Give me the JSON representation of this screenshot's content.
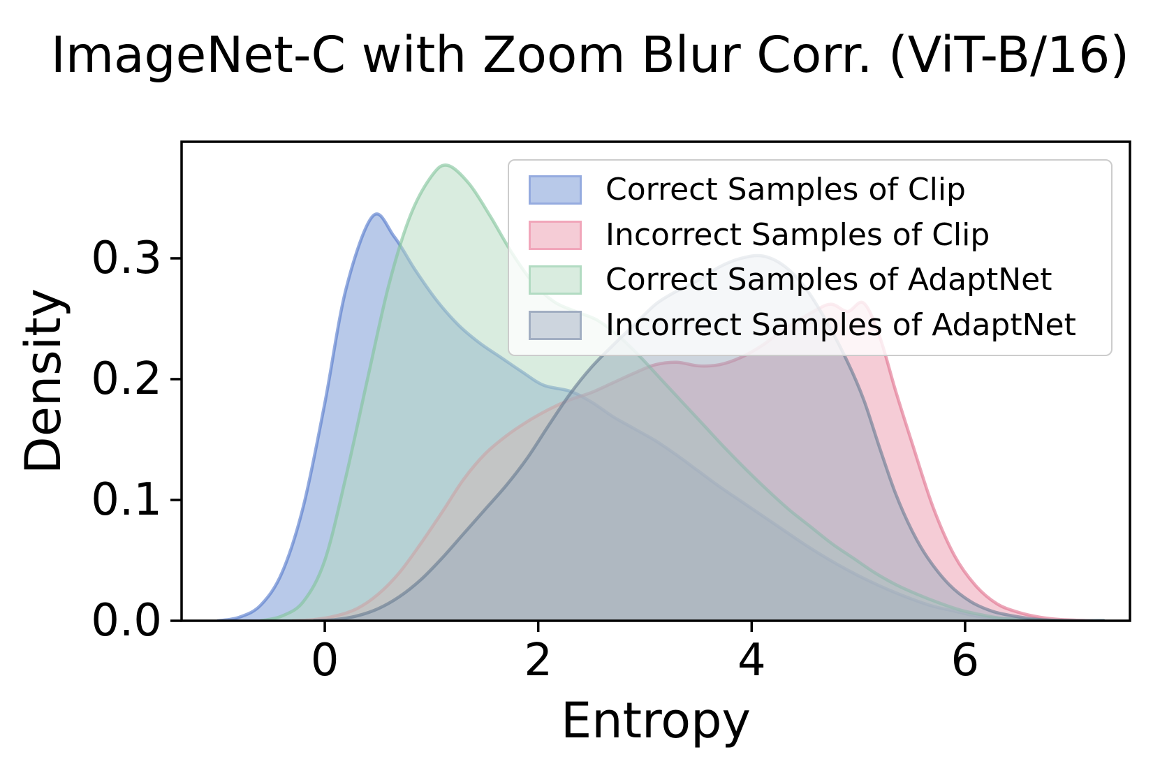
{
  "title": "ImageNet-C with Zoom Blur Corr. (ViT-B/16)",
  "axes": {
    "x": {
      "label": "Entropy",
      "tick_labels": [
        "0",
        "2",
        "4",
        "6"
      ],
      "tick_values": [
        0,
        2,
        4,
        6
      ],
      "range": [
        -1.342,
        7.545
      ]
    },
    "y": {
      "label": "Density",
      "tick_labels": [
        "0.0",
        "0.1",
        "0.2",
        "0.3"
      ],
      "tick_values": [
        0,
        0.1,
        0.2,
        0.3
      ],
      "range": [
        0,
        0.3965
      ]
    },
    "frame_color": "#000000"
  },
  "legend": {
    "entries": [
      {
        "label": "Correct Samples of Clip",
        "swatch_fill": "#b8c9e9",
        "swatch_border": "#95abdf"
      },
      {
        "label": "Incorrect Samples of Clip",
        "swatch_fill": "#f5ccd6",
        "swatch_border": "#f1a6ba"
      },
      {
        "label": "Correct Samples of AdaptNet",
        "swatch_fill": "#d9ecdf",
        "swatch_border": "#b2dbc2"
      },
      {
        "label": "Incorrect Samples of AdaptNet",
        "swatch_fill": "#cdd5de",
        "swatch_border": "#a1aec2"
      }
    ]
  },
  "chart_data": {
    "type": "area",
    "subtype": "kde-density",
    "title": "ImageNet-C with Zoom Blur Corr. (ViT-B/16)",
    "xlabel": "Entropy",
    "ylabel": "Density",
    "xlim": [
      -1.342,
      7.545
    ],
    "ylim": [
      0,
      0.3965
    ],
    "grid": false,
    "legend_position": "upper right",
    "fill_alpha": 0.5,
    "line_alpha": 0.6,
    "series": [
      {
        "name": "Correct Samples of Clip",
        "fill_color": "#7193d3",
        "line_color": "#4f74c9",
        "peak": {
          "x": 0.45,
          "y": 0.335
        },
        "points": [
          [
            -1.0,
            0
          ],
          [
            -0.8,
            0.003
          ],
          [
            -0.6,
            0.013
          ],
          [
            -0.4,
            0.04
          ],
          [
            -0.2,
            0.095
          ],
          [
            0.0,
            0.18
          ],
          [
            0.2,
            0.275
          ],
          [
            0.45,
            0.335
          ],
          [
            0.65,
            0.318
          ],
          [
            0.85,
            0.29
          ],
          [
            1.05,
            0.265
          ],
          [
            1.25,
            0.245
          ],
          [
            1.45,
            0.23
          ],
          [
            1.65,
            0.218
          ],
          [
            1.85,
            0.206
          ],
          [
            2.05,
            0.195
          ],
          [
            2.3,
            0.19
          ],
          [
            2.5,
            0.181
          ],
          [
            2.7,
            0.169
          ],
          [
            2.9,
            0.159
          ],
          [
            3.1,
            0.149
          ],
          [
            3.3,
            0.137
          ],
          [
            3.5,
            0.124
          ],
          [
            3.7,
            0.111
          ],
          [
            3.9,
            0.099
          ],
          [
            4.1,
            0.087
          ],
          [
            4.3,
            0.075
          ],
          [
            4.5,
            0.063
          ],
          [
            4.7,
            0.052
          ],
          [
            4.9,
            0.042
          ],
          [
            5.1,
            0.033
          ],
          [
            5.3,
            0.025
          ],
          [
            5.5,
            0.018
          ],
          [
            5.7,
            0.012
          ],
          [
            5.9,
            0.008
          ],
          [
            6.1,
            0.004
          ],
          [
            6.3,
            0.002
          ],
          [
            6.6,
            0.001
          ],
          [
            7.0,
            0
          ],
          [
            7.3,
            0
          ]
        ]
      },
      {
        "name": "Incorrect Samples of Clip",
        "fill_color": "#eb99ad",
        "line_color": "#e06c8a",
        "peak": {
          "x": 5.05,
          "y": 0.263
        },
        "points": [
          [
            -0.3,
            0
          ],
          [
            -0.1,
            0.001
          ],
          [
            0.1,
            0.004
          ],
          [
            0.3,
            0.01
          ],
          [
            0.5,
            0.022
          ],
          [
            0.7,
            0.04
          ],
          [
            0.9,
            0.064
          ],
          [
            1.1,
            0.09
          ],
          [
            1.3,
            0.117
          ],
          [
            1.5,
            0.138
          ],
          [
            1.7,
            0.153
          ],
          [
            1.9,
            0.165
          ],
          [
            2.1,
            0.175
          ],
          [
            2.3,
            0.183
          ],
          [
            2.5,
            0.189
          ],
          [
            2.7,
            0.197
          ],
          [
            2.9,
            0.205
          ],
          [
            3.1,
            0.212
          ],
          [
            3.3,
            0.214
          ],
          [
            3.5,
            0.211
          ],
          [
            3.7,
            0.212
          ],
          [
            3.9,
            0.218
          ],
          [
            4.1,
            0.228
          ],
          [
            4.3,
            0.241
          ],
          [
            4.6,
            0.257
          ],
          [
            4.75,
            0.262
          ],
          [
            4.9,
            0.256
          ],
          [
            5.05,
            0.263
          ],
          [
            5.2,
            0.235
          ],
          [
            5.35,
            0.19
          ],
          [
            5.5,
            0.148
          ],
          [
            5.7,
            0.094
          ],
          [
            5.9,
            0.054
          ],
          [
            6.1,
            0.029
          ],
          [
            6.3,
            0.014
          ],
          [
            6.5,
            0.007
          ],
          [
            6.7,
            0.003
          ],
          [
            6.9,
            0.001
          ],
          [
            7.2,
            0
          ]
        ]
      },
      {
        "name": "Correct Samples of AdaptNet",
        "fill_color": "#b3d9bf",
        "line_color": "#7fc39a",
        "peak": {
          "x": 1.15,
          "y": 0.377
        },
        "points": [
          [
            -0.6,
            0
          ],
          [
            -0.4,
            0.004
          ],
          [
            -0.2,
            0.016
          ],
          [
            0.0,
            0.05
          ],
          [
            0.2,
            0.12
          ],
          [
            0.4,
            0.2
          ],
          [
            0.6,
            0.278
          ],
          [
            0.8,
            0.335
          ],
          [
            1.0,
            0.368
          ],
          [
            1.15,
            0.377
          ],
          [
            1.35,
            0.362
          ],
          [
            1.55,
            0.335
          ],
          [
            1.75,
            0.305
          ],
          [
            1.95,
            0.28
          ],
          [
            2.15,
            0.264
          ],
          [
            2.35,
            0.256
          ],
          [
            2.55,
            0.249
          ],
          [
            2.75,
            0.236
          ],
          [
            2.95,
            0.219
          ],
          [
            3.15,
            0.2
          ],
          [
            3.35,
            0.181
          ],
          [
            3.55,
            0.162
          ],
          [
            3.75,
            0.143
          ],
          [
            3.95,
            0.125
          ],
          [
            4.15,
            0.108
          ],
          [
            4.35,
            0.092
          ],
          [
            4.55,
            0.078
          ],
          [
            4.75,
            0.064
          ],
          [
            4.95,
            0.052
          ],
          [
            5.15,
            0.04
          ],
          [
            5.35,
            0.03
          ],
          [
            5.55,
            0.022
          ],
          [
            5.75,
            0.015
          ],
          [
            5.95,
            0.009
          ],
          [
            6.15,
            0.005
          ],
          [
            6.35,
            0.002
          ],
          [
            6.6,
            0.001
          ],
          [
            7.0,
            0
          ],
          [
            7.3,
            0
          ]
        ]
      },
      {
        "name": "Incorrect Samples of AdaptNet",
        "fill_color": "#9babbd",
        "line_color": "#64788f",
        "peak": {
          "x": 4.1,
          "y": 0.302
        },
        "points": [
          [
            -0.1,
            0
          ],
          [
            0.1,
            0.001
          ],
          [
            0.3,
            0.004
          ],
          [
            0.5,
            0.01
          ],
          [
            0.7,
            0.02
          ],
          [
            0.9,
            0.034
          ],
          [
            1.1,
            0.052
          ],
          [
            1.3,
            0.072
          ],
          [
            1.5,
            0.092
          ],
          [
            1.7,
            0.112
          ],
          [
            1.9,
            0.135
          ],
          [
            2.1,
            0.162
          ],
          [
            2.3,
            0.188
          ],
          [
            2.5,
            0.21
          ],
          [
            2.7,
            0.228
          ],
          [
            2.9,
            0.245
          ],
          [
            3.1,
            0.262
          ],
          [
            3.3,
            0.273
          ],
          [
            3.5,
            0.282
          ],
          [
            3.7,
            0.293
          ],
          [
            3.9,
            0.3
          ],
          [
            4.1,
            0.302
          ],
          [
            4.3,
            0.294
          ],
          [
            4.5,
            0.276
          ],
          [
            4.7,
            0.248
          ],
          [
            4.9,
            0.214
          ],
          [
            5.05,
            0.183
          ],
          [
            5.2,
            0.143
          ],
          [
            5.35,
            0.105
          ],
          [
            5.5,
            0.075
          ],
          [
            5.65,
            0.052
          ],
          [
            5.85,
            0.03
          ],
          [
            6.05,
            0.016
          ],
          [
            6.25,
            0.008
          ],
          [
            6.45,
            0.004
          ],
          [
            6.7,
            0.001
          ],
          [
            7.0,
            0
          ],
          [
            7.3,
            0
          ]
        ]
      }
    ]
  }
}
